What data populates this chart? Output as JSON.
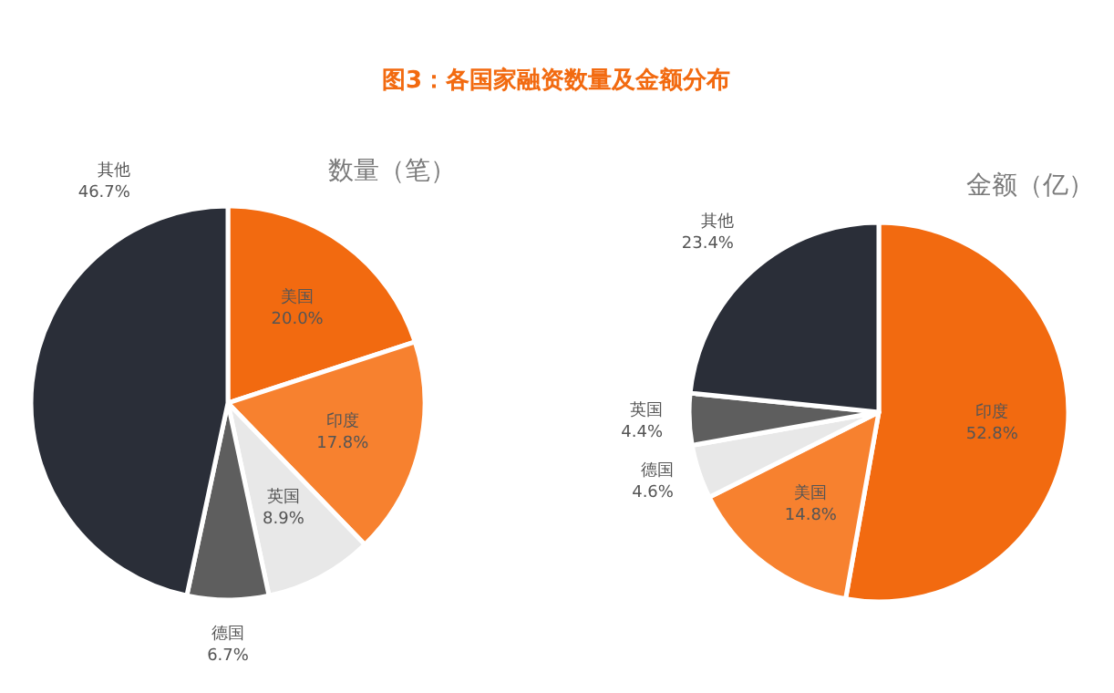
{
  "chart_data": [
    {
      "type": "pie",
      "title": "图3：各国家融资数量及金额分布",
      "subtitle": "数量（笔）",
      "categories": [
        "美国",
        "印度",
        "英国",
        "德国",
        "其他"
      ],
      "values": [
        20.0,
        17.8,
        8.9,
        6.7,
        46.7
      ],
      "value_labels": [
        "20.0%",
        "17.8%",
        "8.9%",
        "6.7%",
        "46.7%"
      ],
      "colors": [
        "#f26a10",
        "#f7812f",
        "#e8e8e8",
        "#5e5e5e",
        "#2a2e38"
      ],
      "legend": false
    },
    {
      "type": "pie",
      "subtitle": "金额（亿）",
      "categories": [
        "印度",
        "美国",
        "德国",
        "英国",
        "其他"
      ],
      "values": [
        52.8,
        14.8,
        4.6,
        4.4,
        23.4
      ],
      "value_labels": [
        "52.8%",
        "14.8%",
        "4.6%",
        "4.4%",
        "23.4%"
      ],
      "colors": [
        "#f26a10",
        "#f7812f",
        "#e8e8e8",
        "#5e5e5e",
        "#2a2e38"
      ],
      "legend": false
    }
  ]
}
